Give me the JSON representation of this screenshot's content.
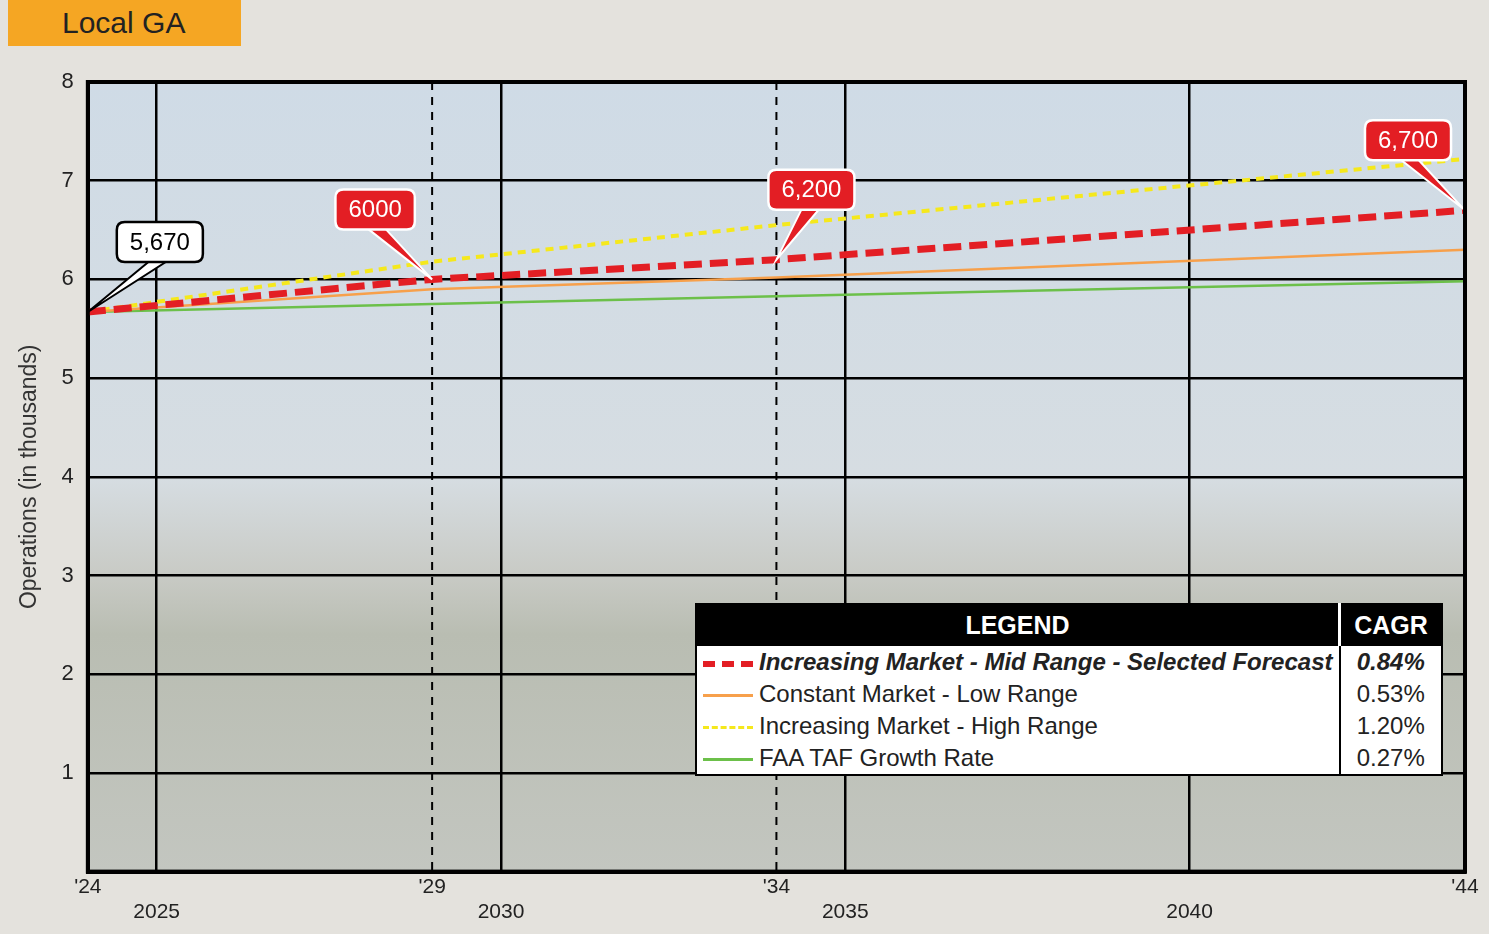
{
  "chart_data": {
    "type": "line",
    "title": "Local GA",
    "y_label": "Operations (in thousands)",
    "x": [
      2024,
      2029,
      2034,
      2044
    ],
    "xlim": [
      2024,
      2044
    ],
    "xticks": [
      {
        "value": 2024,
        "label": "'24"
      },
      2025,
      {
        "value": 2029,
        "label": "'29"
      },
      2030,
      {
        "value": 2034,
        "label": "'34"
      },
      2035,
      2040,
      {
        "value": 2044,
        "label": "'44"
      }
    ],
    "ylim": [
      0,
      8
    ],
    "yticks": [
      1,
      2,
      3,
      4,
      5,
      6,
      7,
      8
    ],
    "grid": true,
    "legend": "lower right",
    "data_labels": true,
    "legend_header": [
      "LEGEND",
      "CAGR"
    ],
    "series": [
      {
        "name": "Increasing Market - Mid Range - Selected Forecast",
        "color": "#e31e24",
        "line_style": "dashed",
        "values": [
          5.67,
          6.0,
          6.2,
          6.7
        ],
        "value_labels": [
          "5,670",
          "6000",
          "6,200",
          "6,700"
        ],
        "cagr": "0.84%"
      },
      {
        "name": "Constant Market - Low Range",
        "color": "#f7a04b",
        "line_style": "solid",
        "values": [
          5.67,
          5.9,
          6.02,
          6.3
        ],
        "cagr": "0.53%"
      },
      {
        "name": "Increasing Market - High Range",
        "color": "#f5e81c",
        "line_style": "dotted",
        "values": [
          5.67,
          6.18,
          6.55,
          7.22
        ],
        "cagr": "1.20%"
      },
      {
        "name": "FAA TAF Growth Rate",
        "color": "#6cc04a",
        "line_style": "solid",
        "values": [
          5.67,
          5.75,
          5.83,
          5.98
        ],
        "cagr": "0.27%"
      }
    ]
  }
}
